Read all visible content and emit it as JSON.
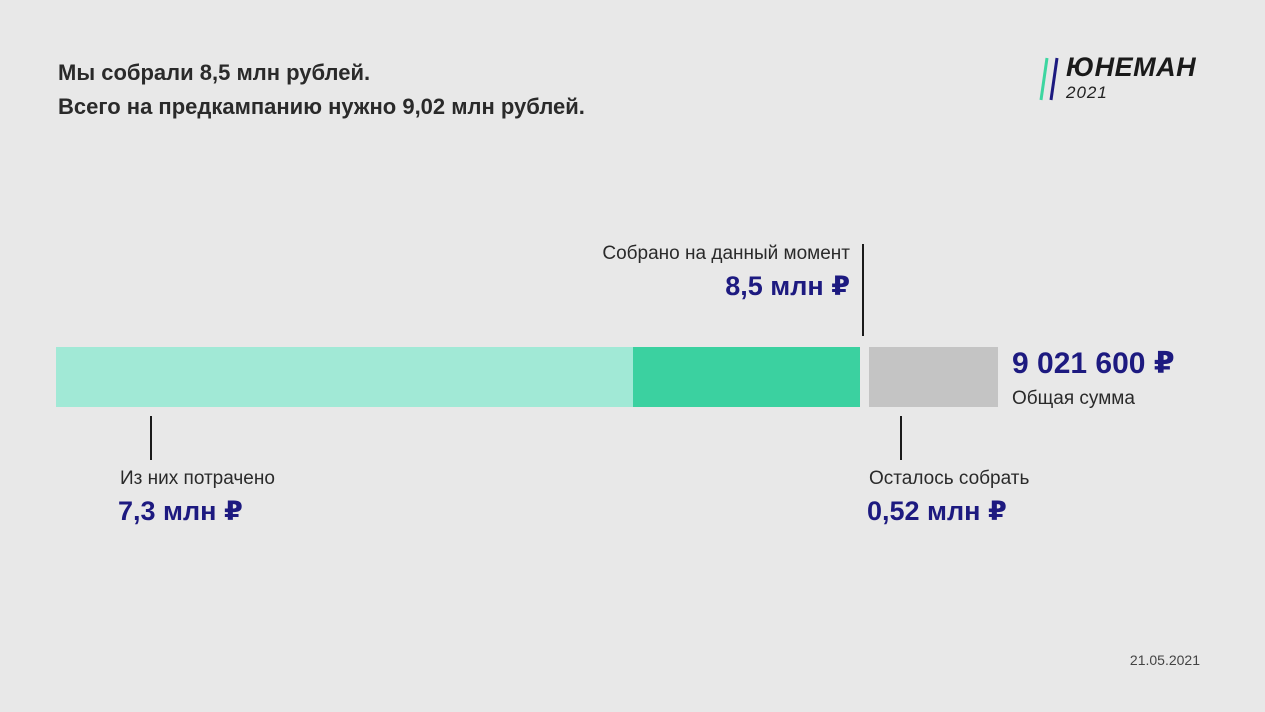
{
  "header": {
    "line1": "Мы собрали 8,5 млн рублей.",
    "line2": "Всего на предкампанию нужно 9,02 млн рублей."
  },
  "logo": {
    "name": "ЮНЕМАН",
    "year": "2021",
    "slash_colors": [
      "#3dd6a0",
      "#1d1a80"
    ]
  },
  "chart_data": {
    "type": "bar",
    "unit": "млн ₽",
    "total": 9.0216,
    "series": [
      {
        "name": "Из них потрачено",
        "value": 7.3,
        "color": "#a1e9d6"
      },
      {
        "name": "Собрано на данный момент",
        "value": 8.5,
        "color": "#3bd1a0"
      },
      {
        "name": "Осталось собрать",
        "value": 0.52,
        "color": "#c4c4c4"
      }
    ]
  },
  "annotations": {
    "spent": {
      "label": "Из них потрачено",
      "value": "7,3 млн ₽"
    },
    "collected": {
      "label": "Собрано на данный момент",
      "value": "8,5 млн ₽"
    },
    "remaining": {
      "label": "Осталось собрать",
      "value": "0,52 млн ₽"
    },
    "total": {
      "value": "9 021 600 ₽",
      "label": "Общая сумма"
    }
  },
  "date": "21.05.2021"
}
